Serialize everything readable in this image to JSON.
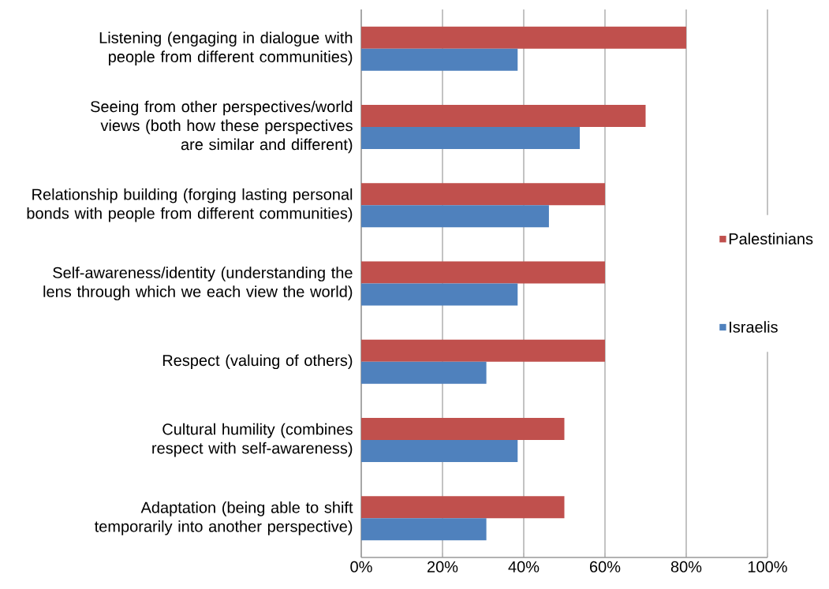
{
  "chart_data": {
    "type": "bar",
    "orientation": "horizontal",
    "categories": [
      "Listening (engaging in dialogue with people from different communities)",
      "Seeing from other perspectives/world views (both how these perspectives are similar and different)",
      "Relationship building (forging lasting personal bonds with people from different communities)",
      "Self-awareness/identity (understanding the lens through which we each view the world)",
      "Respect (valuing of others)",
      "Cultural humility (combines respect with self-awareness)",
      "Adaptation (being able to shift temporarily into another perspective)"
    ],
    "series": [
      {
        "name": "Palestinians",
        "color": "#c0504d",
        "values": [
          80,
          70,
          60,
          60,
          60,
          50,
          50
        ]
      },
      {
        "name": "Israelis",
        "color": "#4f81bd",
        "values": [
          38.5,
          53.8,
          46.2,
          38.5,
          30.8,
          38.5,
          30.8
        ]
      }
    ],
    "xlim": [
      0,
      100
    ],
    "xticks": [
      {
        "value": 0,
        "label": "0%"
      },
      {
        "value": 20,
        "label": "20%"
      },
      {
        "value": 40,
        "label": "40%"
      },
      {
        "value": 60,
        "label": "60%"
      },
      {
        "value": 80,
        "label": "80%"
      },
      {
        "value": 100,
        "label": "100%"
      }
    ],
    "grid": "x",
    "legend": "right"
  }
}
